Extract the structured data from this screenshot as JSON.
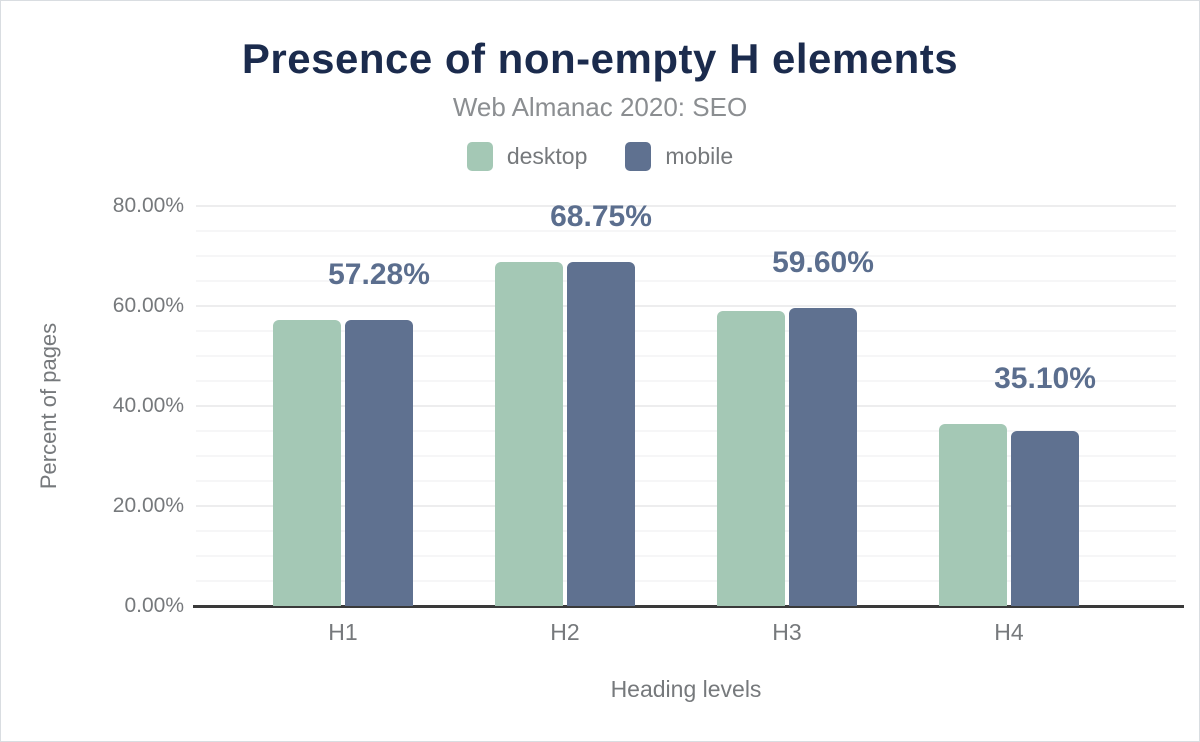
{
  "header": {
    "title": "Presence of non-empty H elements",
    "subtitle": "Web Almanac 2020: SEO"
  },
  "legend": [
    {
      "label": "desktop",
      "color": "#a4c8b5"
    },
    {
      "label": "mobile",
      "color": "#5f7190"
    }
  ],
  "chart_data": {
    "type": "bar",
    "categories": [
      "H1",
      "H2",
      "H3",
      "H4"
    ],
    "series": [
      {
        "name": "desktop",
        "color": "#a4c8b5",
        "values": [
          57.2,
          68.8,
          59.0,
          36.5
        ]
      },
      {
        "name": "mobile",
        "color": "#5f7190",
        "values": [
          57.28,
          68.75,
          59.6,
          35.1
        ]
      }
    ],
    "bar_labels": [
      "57.28%",
      "68.75%",
      "59.60%",
      "35.10%"
    ],
    "bar_labels_series": "mobile",
    "title": "Presence of non-empty H elements",
    "subtitle": "Web Almanac 2020: SEO",
    "xlabel": "Heading levels",
    "ylabel": "Percent of pages",
    "ylim": [
      0,
      80
    ],
    "yticks": [
      "0.00%",
      "20.00%",
      "40.00%",
      "60.00%",
      "80.00%"
    ],
    "ytick_values": [
      0,
      20,
      40,
      60,
      80
    ],
    "grid_minor_step": 5,
    "grid_major_step": 20,
    "grid": true,
    "legend_position": "top"
  },
  "colors": {
    "title": "#1b2b4d",
    "subtitle": "#8b8e91",
    "axis_text": "#76797c",
    "data_label": "#5b6e8e",
    "axis_line": "#3a3a3a",
    "grid_minor": "#f6f6f7",
    "grid_major": "#ededee",
    "desktop": "#a4c8b5",
    "mobile": "#5f7190"
  }
}
